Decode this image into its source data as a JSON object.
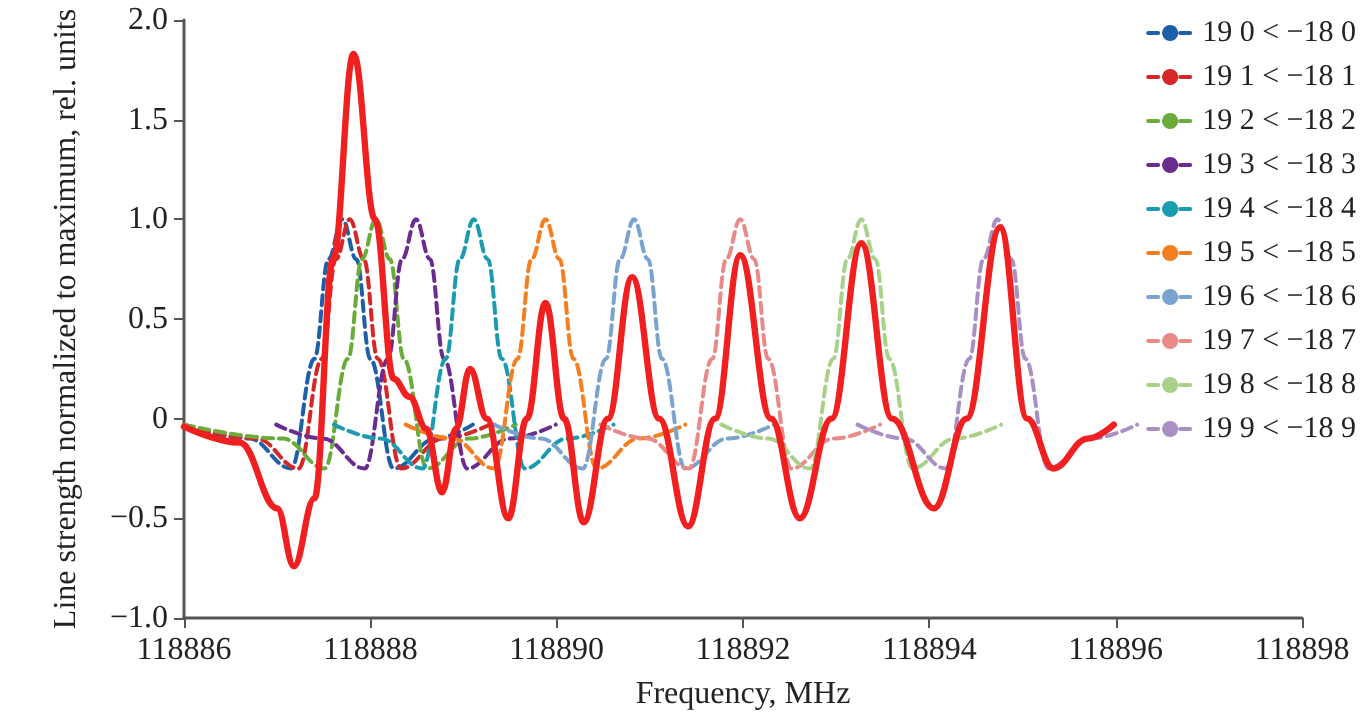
{
  "chart_data": {
    "type": "line",
    "xlabel": "Frequency, MHz",
    "ylabel": "Line strength normalized to maximum, rel. units",
    "xlim": [
      118886,
      118898
    ],
    "xticks": [
      118886,
      118888,
      118890,
      118892,
      118894,
      118896,
      118898
    ],
    "ylim": [
      -1,
      2
    ],
    "yticks": [
      {
        "value": -1,
        "label": "−1.0"
      },
      {
        "value": -0.5,
        "label": "−0.5"
      },
      {
        "value": 0,
        "label": "0"
      },
      {
        "value": 0.5,
        "label": "0.5"
      },
      {
        "value": 1,
        "label": "1.0"
      },
      {
        "value": 1.5,
        "label": "1.5"
      },
      {
        "value": 2,
        "label": "2.0"
      }
    ],
    "grid": false,
    "legend": "top right",
    "marker": "none",
    "series": [
      {
        "name": "19 0 < −18 0",
        "color": "#1f5fa8",
        "line_style": "dashed",
        "x": [
          118886,
          118886.7,
          118887.15,
          118887.4,
          118887.55,
          118887.7,
          118887.85,
          118888,
          118888.25,
          118888.7,
          118889.1
        ],
        "values": [
          -0.03,
          -0.1,
          -0.25,
          0.3,
          0.8,
          1,
          0.8,
          0.3,
          -0.25,
          -0.1,
          -0.03
        ]
      },
      {
        "name": "19 1 < −18 1",
        "color": "#d62728",
        "line_style": "dashed",
        "x": [
          118886,
          118886.78,
          118887.23,
          118887.48,
          118887.63,
          118887.78,
          118887.93,
          118888.08,
          118888.33,
          118888.78,
          118889.28
        ],
        "values": [
          -0.03,
          -0.1,
          -0.25,
          0.3,
          0.8,
          1,
          0.8,
          0.3,
          -0.25,
          -0.1,
          -0.03
        ]
      },
      {
        "name": "19 2 < −18 2",
        "color": "#6aab3a",
        "line_style": "dashed",
        "x": [
          118886,
          118887.06,
          118887.51,
          118887.76,
          118887.91,
          118888.06,
          118888.21,
          118888.36,
          118888.61,
          118889.06,
          118889.56
        ],
        "values": [
          -0.03,
          -0.1,
          -0.25,
          0.3,
          0.8,
          1,
          0.8,
          0.3,
          -0.25,
          -0.1,
          -0.03
        ]
      },
      {
        "name": "19 3 < −18 3",
        "color": "#6a2d8f",
        "line_style": "dashed",
        "x": [
          118886.99,
          118887.49,
          118887.94,
          118888.19,
          118888.34,
          118888.49,
          118888.64,
          118888.79,
          118889.04,
          118889.49,
          118889.99
        ],
        "values": [
          -0.03,
          -0.1,
          -0.25,
          0.3,
          0.8,
          1,
          0.8,
          0.3,
          -0.25,
          -0.1,
          -0.03
        ]
      },
      {
        "name": "19 4 < −18 4",
        "color": "#1a9bb0",
        "line_style": "dashed",
        "x": [
          118887.61,
          118888.11,
          118888.56,
          118888.81,
          118888.96,
          118889.11,
          118889.26,
          118889.41,
          118889.66,
          118890.11,
          118890.61
        ],
        "values": [
          -0.03,
          -0.1,
          -0.25,
          0.3,
          0.8,
          1,
          0.8,
          0.3,
          -0.25,
          -0.1,
          -0.03
        ]
      },
      {
        "name": "19 5 < −18 5",
        "color": "#f57f20",
        "line_style": "dashed",
        "x": [
          118888.38,
          118888.88,
          118889.33,
          118889.58,
          118889.73,
          118889.88,
          118890.03,
          118890.18,
          118890.43,
          118890.88,
          118891.38
        ],
        "values": [
          -0.03,
          -0.1,
          -0.25,
          0.3,
          0.8,
          1,
          0.8,
          0.3,
          -0.25,
          -0.1,
          -0.03
        ]
      },
      {
        "name": "19 6 < −18 6",
        "color": "#7aa3cf",
        "line_style": "dashed",
        "x": [
          118889.33,
          118889.83,
          118890.28,
          118890.53,
          118890.68,
          118890.83,
          118890.98,
          118891.13,
          118891.38,
          118891.83,
          118892.33
        ],
        "values": [
          -0.03,
          -0.1,
          -0.25,
          0.3,
          0.8,
          1,
          0.8,
          0.3,
          -0.25,
          -0.1,
          -0.03
        ]
      },
      {
        "name": "19 7 < −18 7",
        "color": "#e88a8a",
        "line_style": "dashed",
        "x": [
          118890.47,
          118890.97,
          118891.42,
          118891.67,
          118891.82,
          118891.97,
          118892.12,
          118892.27,
          118892.52,
          118892.97,
          118893.47
        ],
        "values": [
          -0.03,
          -0.1,
          -0.25,
          0.3,
          0.8,
          1,
          0.8,
          0.3,
          -0.25,
          -0.1,
          -0.03
        ]
      },
      {
        "name": "19 8 < −18 8",
        "color": "#a8d18a",
        "line_style": "dashed",
        "x": [
          118891.77,
          118892.27,
          118892.72,
          118892.97,
          118893.12,
          118893.27,
          118893.42,
          118893.57,
          118893.82,
          118894.27,
          118894.77
        ],
        "values": [
          -0.03,
          -0.1,
          -0.25,
          0.3,
          0.8,
          1,
          0.8,
          0.3,
          -0.25,
          -0.1,
          -0.03
        ]
      },
      {
        "name": "19 9 < −18 9",
        "color": "#a990c4",
        "line_style": "dashed",
        "x": [
          118893.23,
          118893.73,
          118894.18,
          118894.43,
          118894.58,
          118894.73,
          118894.88,
          118895.03,
          118895.28,
          118895.73,
          118896.23
        ],
        "values": [
          -0.03,
          -0.1,
          -0.25,
          0.3,
          0.8,
          1,
          0.8,
          0.3,
          -0.25,
          -0.1,
          -0.03
        ]
      },
      {
        "color": "#f02020",
        "line_style": "solid",
        "x": [
          118886,
          118886.6,
          118887,
          118887.18,
          118887.4,
          118887.6,
          118887.82,
          118888.05,
          118888.25,
          118888.42,
          118888.6,
          118888.77,
          118888.92,
          118889.07,
          118889.25,
          118889.48,
          118889.68,
          118889.88,
          118890.08,
          118890.29,
          118890.55,
          118890.81,
          118891.1,
          118891.41,
          118891.7,
          118891.97,
          118892.3,
          118892.61,
          118892.95,
          118893.27,
          118893.6,
          118894.05,
          118894.4,
          118894.76,
          118895.05,
          118895.33,
          118895.7,
          118895.98
        ],
        "values": [
          -0.04,
          -0.12,
          -0.45,
          -0.74,
          -0.4,
          0.8,
          1.83,
          1,
          0.2,
          0.11,
          -0.05,
          -0.37,
          -0.05,
          0.25,
          0,
          -0.5,
          0,
          0.58,
          0,
          -0.52,
          0,
          0.71,
          0,
          -0.54,
          0,
          0.82,
          0,
          -0.5,
          0,
          0.88,
          0,
          -0.45,
          0,
          0.96,
          0,
          -0.25,
          -0.1,
          -0.03
        ]
      }
    ]
  }
}
